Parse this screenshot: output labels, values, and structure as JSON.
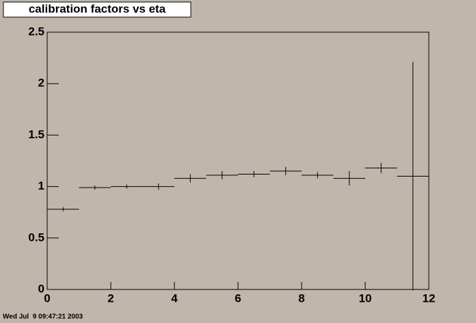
{
  "chart_data": {
    "type": "histogram",
    "title": "calibration factors vs eta",
    "bins": [
      0,
      1,
      2,
      3,
      4,
      5,
      6,
      7,
      8,
      9,
      10,
      11,
      12
    ],
    "values": [
      0.78,
      0.99,
      1.0,
      1.0,
      1.08,
      1.11,
      1.12,
      1.15,
      1.11,
      1.08,
      1.18,
      1.1
    ],
    "errors": [
      0.02,
      0.02,
      0.02,
      0.03,
      0.04,
      0.04,
      0.03,
      0.04,
      0.03,
      0.07,
      0.05,
      1.11
    ],
    "color": "#000000",
    "xlim": [
      0,
      12
    ],
    "xticks": [
      0,
      2,
      4,
      6,
      8,
      10,
      12
    ],
    "ylim": [
      0,
      2.5
    ],
    "yticks": [
      0,
      0.5,
      1,
      1.5,
      2,
      2.5
    ],
    "footer": "Wed Jul  9 09:47:21 2003"
  }
}
